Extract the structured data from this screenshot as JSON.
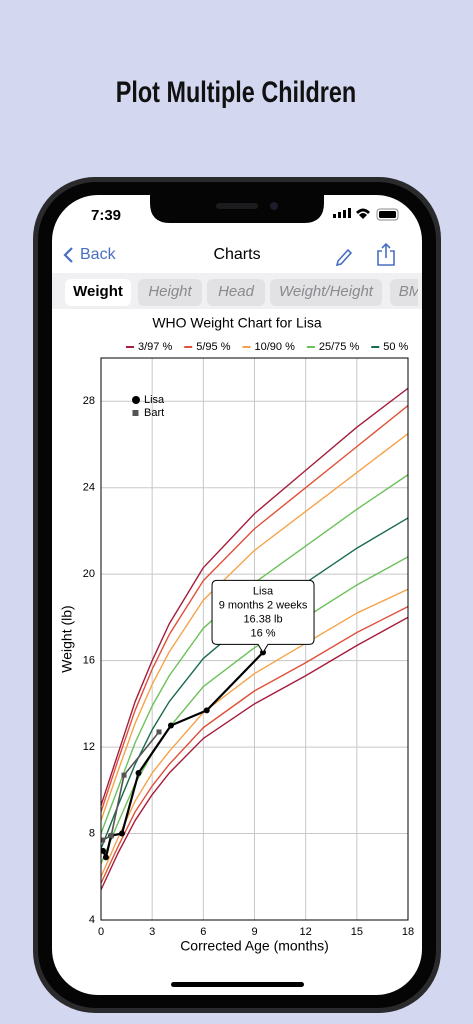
{
  "headline": "Plot Multiple Children",
  "status_bar": {
    "time": "7:39"
  },
  "nav": {
    "back": "Back",
    "title": "Charts"
  },
  "tabs": [
    "Weight",
    "Height",
    "Head",
    "Weight/Height",
    "BM"
  ],
  "chart_data": {
    "type": "line",
    "title": "WHO Weight Chart for Lisa",
    "x_label": "Corrected Age (months)",
    "y_label": "Weight (lb)",
    "xlim": [
      0,
      18
    ],
    "ylim": [
      4,
      30
    ],
    "xticks": [
      0,
      3,
      6,
      9,
      12,
      15,
      18
    ],
    "yticks": [
      4,
      8,
      12,
      16,
      20,
      24,
      28
    ],
    "grid": true,
    "x": [
      0,
      1,
      2,
      3,
      4,
      6,
      9,
      12,
      15,
      18
    ],
    "series": [
      {
        "name": "3/97 %",
        "color": "#a51c3c",
        "lower": [
          5.4,
          7.1,
          8.6,
          9.8,
          10.8,
          12.4,
          14.0,
          15.3,
          16.7,
          18.0
        ],
        "upper": [
          9.3,
          11.7,
          14.1,
          16.0,
          17.7,
          20.3,
          22.8,
          24.8,
          26.8,
          28.6
        ]
      },
      {
        "name": "5/95 %",
        "color": "#e0503a",
        "lower": [
          5.7,
          7.4,
          9.0,
          10.2,
          11.2,
          12.9,
          14.6,
          15.9,
          17.3,
          18.5
        ],
        "upper": [
          9.0,
          11.4,
          13.7,
          15.6,
          17.2,
          19.7,
          22.1,
          24.0,
          25.9,
          27.8
        ]
      },
      {
        "name": "10/90 %",
        "color": "#f5a34a",
        "lower": [
          6.0,
          7.8,
          9.5,
          10.8,
          11.8,
          13.6,
          15.4,
          16.8,
          18.2,
          19.3
        ],
        "upper": [
          8.6,
          10.9,
          13.1,
          14.9,
          16.4,
          18.8,
          21.1,
          22.9,
          24.7,
          26.5
        ]
      },
      {
        "name": "25/75 %",
        "color": "#6cc05a",
        "lower": [
          6.6,
          8.5,
          10.3,
          11.7,
          12.9,
          14.8,
          16.6,
          18.0,
          19.5,
          20.8
        ],
        "upper": [
          8.0,
          10.1,
          12.2,
          13.9,
          15.3,
          17.5,
          19.6,
          21.3,
          23.0,
          24.6
        ]
      },
      {
        "name": "50 %",
        "color": "#1a6b4a",
        "values": [
          7.3,
          9.3,
          11.2,
          12.8,
          14.1,
          16.1,
          18.1,
          19.6,
          21.2,
          22.6
        ]
      }
    ],
    "children": [
      {
        "name": "Lisa",
        "color": "#000000",
        "marker": "circle",
        "x": [
          0.12,
          0.29,
          0.59,
          1.23,
          2.2,
          4.1,
          6.2,
          9.5
        ],
        "values": [
          7.2,
          6.9,
          7.9,
          8.0,
          10.8,
          13.0,
          13.7,
          16.38
        ]
      },
      {
        "name": "Bart",
        "color": "#555555",
        "marker": "square",
        "x": [
          0.1,
          0.6,
          1.35,
          3.4
        ],
        "values": [
          7.7,
          7.9,
          10.7,
          12.7
        ]
      }
    ],
    "annotation": {
      "lines": [
        "Lisa",
        "9 months 2 weeks",
        "16.38 lb",
        "16 %"
      ]
    }
  }
}
